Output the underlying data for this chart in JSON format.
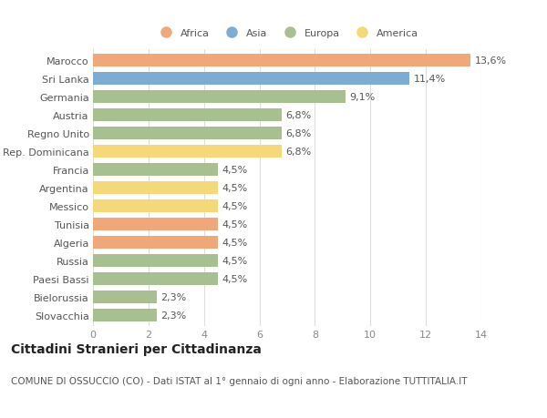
{
  "countries": [
    "Marocco",
    "Sri Lanka",
    "Germania",
    "Austria",
    "Regno Unito",
    "Rep. Dominicana",
    "Francia",
    "Argentina",
    "Messico",
    "Tunisia",
    "Algeria",
    "Russia",
    "Paesi Bassi",
    "Bielorussia",
    "Slovacchia"
  ],
  "values": [
    13.6,
    11.4,
    9.1,
    6.8,
    6.8,
    6.8,
    4.5,
    4.5,
    4.5,
    4.5,
    4.5,
    4.5,
    4.5,
    2.3,
    2.3
  ],
  "labels": [
    "13,6%",
    "11,4%",
    "9,1%",
    "6,8%",
    "6,8%",
    "6,8%",
    "4,5%",
    "4,5%",
    "4,5%",
    "4,5%",
    "4,5%",
    "4,5%",
    "4,5%",
    "2,3%",
    "2,3%"
  ],
  "continents": [
    "Africa",
    "Asia",
    "Europa",
    "Europa",
    "Europa",
    "America",
    "Europa",
    "America",
    "America",
    "Africa",
    "Africa",
    "Europa",
    "Europa",
    "Europa",
    "Europa"
  ],
  "colors": {
    "Africa": "#F0A878",
    "Asia": "#7BADD4",
    "Europa": "#A8C090",
    "America": "#F5D878"
  },
  "legend_order": [
    "Africa",
    "Asia",
    "Europa",
    "America"
  ],
  "title": "Cittadini Stranieri per Cittadinanza",
  "subtitle": "COMUNE DI OSSUCCIO (CO) - Dati ISTAT al 1° gennaio di ogni anno - Elaborazione TUTTITALIA.IT",
  "xlim": [
    0,
    14
  ],
  "xticks": [
    0,
    2,
    4,
    6,
    8,
    10,
    12,
    14
  ],
  "bg_color": "#ffffff",
  "grid_color": "#dddddd",
  "bar_height": 0.68,
  "label_fontsize": 8,
  "tick_fontsize": 8,
  "title_fontsize": 10,
  "subtitle_fontsize": 7.5
}
